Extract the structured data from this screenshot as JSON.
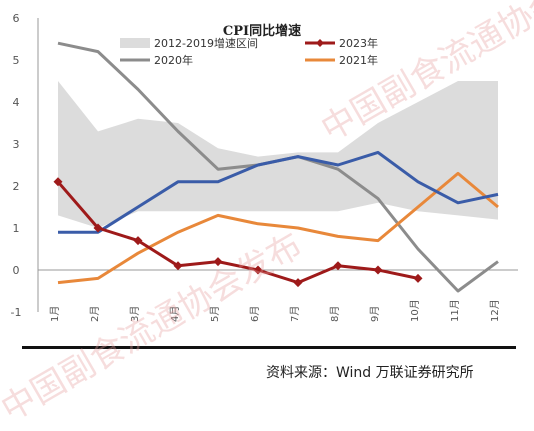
{
  "chart_data": {
    "type": "line",
    "title": "CPI同比增速",
    "categories": [
      "1月",
      "2月",
      "3月",
      "4月",
      "5月",
      "6月",
      "7月",
      "8月",
      "9月",
      "10月",
      "11月",
      "12月"
    ],
    "ylim": [
      -1,
      6
    ],
    "yticks": [
      "-1",
      "0",
      "1",
      "2",
      "3",
      "4",
      "5",
      "6"
    ],
    "band": {
      "name": "2012-2019增速区间",
      "color": "#dcdcdc",
      "upper": [
        4.5,
        3.3,
        3.6,
        3.5,
        2.9,
        2.7,
        2.8,
        2.8,
        3.5,
        4.0,
        4.5,
        4.5
      ],
      "lower": [
        1.3,
        1.0,
        1.4,
        1.4,
        1.4,
        1.4,
        1.4,
        1.4,
        1.6,
        1.4,
        1.3,
        1.2
      ]
    },
    "series": [
      {
        "name": "2020年",
        "color": "#8c8c8c",
        "values": [
          5.4,
          5.2,
          4.3,
          3.3,
          2.4,
          2.5,
          2.7,
          2.4,
          1.7,
          0.5,
          -0.5,
          0.2
        ]
      },
      {
        "name": "2021年",
        "color": "#e8883a",
        "values": [
          -0.3,
          -0.2,
          0.4,
          0.9,
          1.3,
          1.1,
          1.0,
          0.8,
          0.7,
          1.5,
          2.3,
          1.5
        ]
      },
      {
        "name": "2022年",
        "color": "#3a5ca8",
        "values": [
          0.9,
          0.9,
          1.5,
          2.1,
          2.1,
          2.5,
          2.7,
          2.5,
          2.8,
          2.1,
          1.6,
          1.8
        ]
      },
      {
        "name": "2023年",
        "color": "#9e1a1a",
        "markers": true,
        "values": [
          2.1,
          1.0,
          0.7,
          0.1,
          0.2,
          0.0,
          -0.3,
          0.1,
          0.0,
          -0.2,
          null,
          null
        ]
      }
    ],
    "legend": [
      {
        "label": "2012-2019增速区间",
        "kind": "band"
      },
      {
        "label": "2023年",
        "kind": "line-marker",
        "series": "2023年"
      },
      {
        "label": "2020年",
        "kind": "line",
        "series": "2020年"
      },
      {
        "label": "2021年",
        "kind": "line",
        "series": "2021年"
      }
    ]
  },
  "source_note": "资料来源：Wind 万联证券研究所",
  "watermark_text": "中国副食流通协会发布"
}
